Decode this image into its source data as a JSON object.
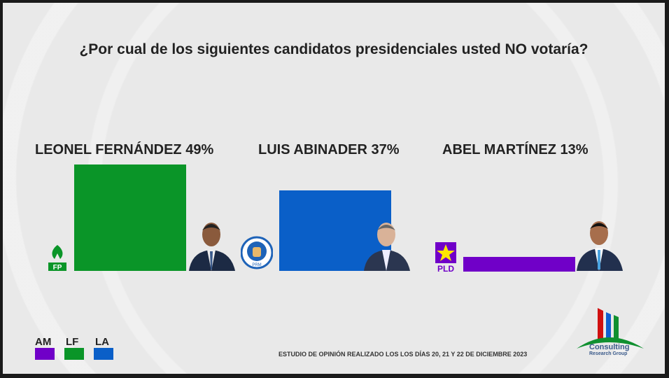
{
  "chart_data": {
    "type": "bar",
    "title": "¿Por cual de los siguientes candidatos presidenciales usted NO votaría?",
    "categories": [
      "LEONEL FERNÁNDEZ 49%",
      "LUIS ABINADER  37%",
      "ABEL MARTÍNEZ 13%"
    ],
    "values": [
      49,
      37,
      13
    ],
    "colors": [
      "#0a9528",
      "#0a5fc8",
      "#7000c8"
    ],
    "ylim": [
      0,
      49
    ],
    "party_logos": [
      "FP",
      "PRM",
      "PLD"
    ],
    "legend": [
      {
        "label": "AM",
        "color": "#7000c8"
      },
      {
        "label": "LF",
        "color": "#0a9528"
      },
      {
        "label": "LA",
        "color": "#0a5fc8"
      }
    ]
  },
  "footer": {
    "note": "ESTUDIO DE OPINIÓN REALIZADO LOS LOS DÍAS 20, 21 Y 22 DE DICIEMBRE 2023",
    "logo_line1": "Consulting",
    "logo_line2": "Research Group"
  }
}
